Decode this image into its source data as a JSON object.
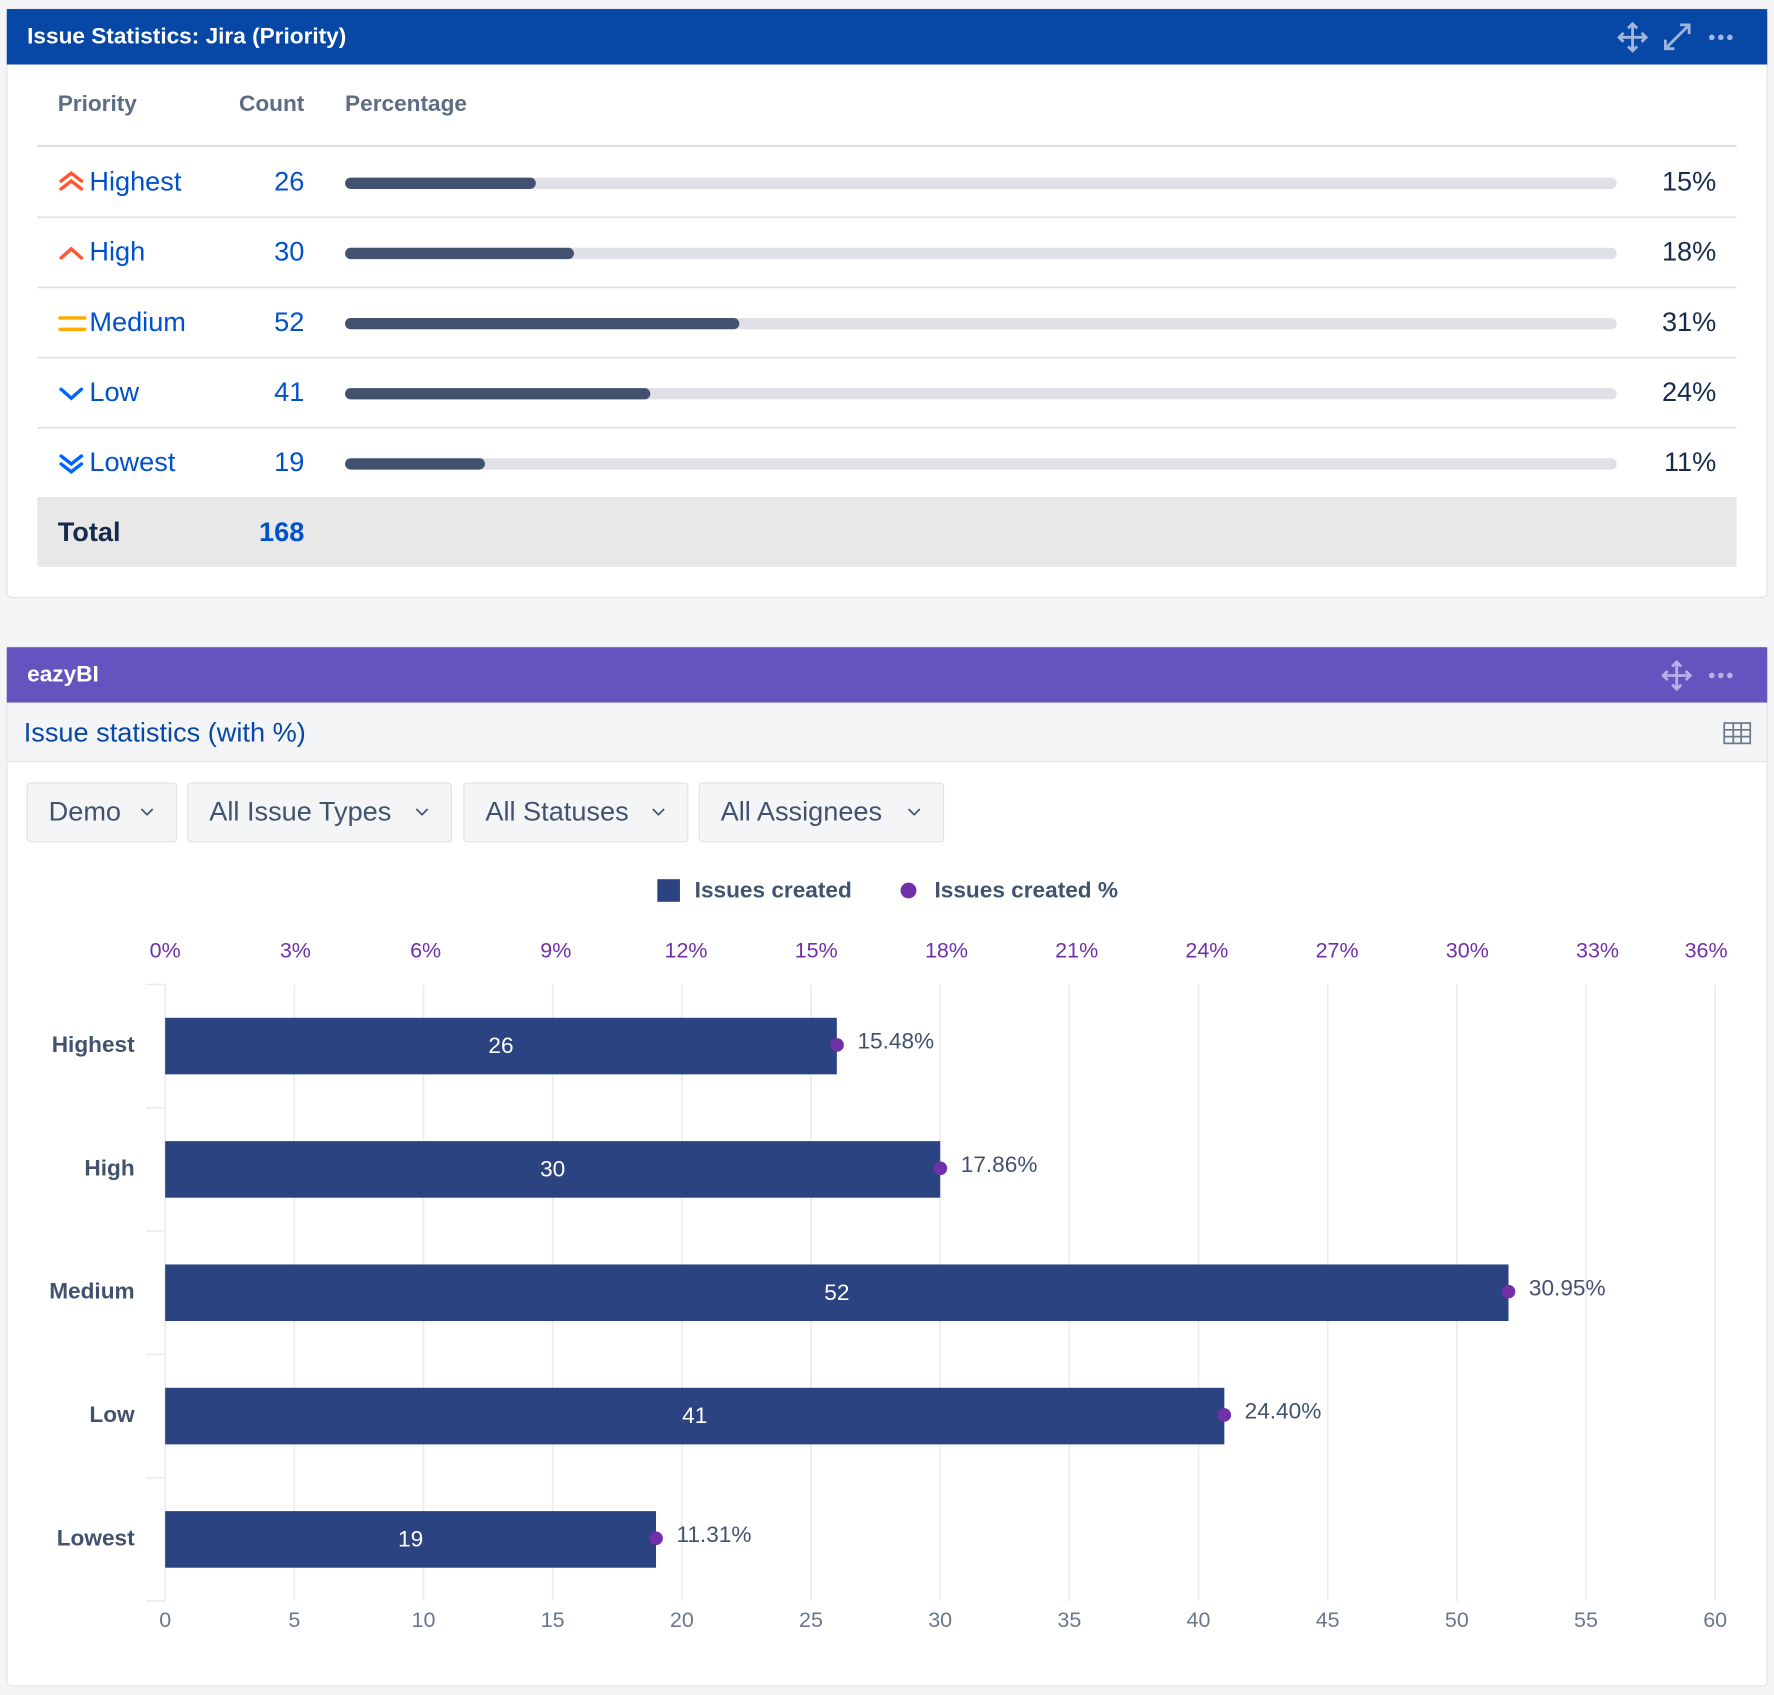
{
  "table": {
    "title": "Issue Statistics: Jira (Priority)",
    "columns": [
      "Priority",
      "Count",
      "Percentage"
    ],
    "rows": [
      {
        "priority": "Highest",
        "count": 26,
        "percentage": {
          "value": 15,
          "label": "15%"
        }
      },
      {
        "priority": "High",
        "count": 30,
        "percentage": {
          "value": 18,
          "label": "18%"
        }
      },
      {
        "priority": "Medium",
        "count": 52,
        "percentage": {
          "value": 31,
          "label": "31%"
        }
      },
      {
        "priority": "Low",
        "count": 41,
        "percentage": {
          "value": 24,
          "label": "24%"
        }
      },
      {
        "priority": "Lowest",
        "count": 19,
        "percentage": {
          "value": 11,
          "label": "11%"
        }
      }
    ],
    "total": {
      "label": "Total",
      "count": 168
    }
  },
  "report": {
    "title": "eazyBI",
    "report_title": "Issue statistics (with %)",
    "filters": [
      "Demo",
      "All Issue Types",
      "All Statuses",
      "All Assignees"
    ]
  },
  "chart_data": {
    "type": "bar",
    "orientation": "horizontal",
    "legend_position": "top",
    "grid": true,
    "categories": [
      "Highest",
      "High",
      "Medium",
      "Low",
      "Lowest"
    ],
    "series": [
      {
        "name": "Issues created",
        "color": "#2b4380",
        "values": [
          26,
          30,
          52,
          41,
          19
        ]
      },
      {
        "name": "Issues created %",
        "color": "#7030a8",
        "type": "scatter",
        "axis": "x2",
        "values": [
          15.48,
          17.86,
          30.95,
          24.4,
          11.31
        ],
        "value_labels": [
          "15.48%",
          "17.86%",
          "30.95%",
          "24.40%",
          "11.31%"
        ]
      }
    ],
    "xlim": [
      0,
      60
    ],
    "xticks": [
      0,
      5,
      10,
      15,
      20,
      25,
      30,
      35,
      40,
      45,
      50,
      55,
      60
    ],
    "x2lim": [
      0,
      35.71
    ],
    "x2ticks": [
      {
        "value": 0,
        "label": "0%"
      },
      {
        "value": 3,
        "label": "3%"
      },
      {
        "value": 6,
        "label": "6%"
      },
      {
        "value": 9,
        "label": "9%"
      },
      {
        "value": 12,
        "label": "12%"
      },
      {
        "value": 15,
        "label": "15%"
      },
      {
        "value": 18,
        "label": "18%"
      },
      {
        "value": 21,
        "label": "21%"
      },
      {
        "value": 24,
        "label": "24%"
      },
      {
        "value": 27,
        "label": "27%"
      },
      {
        "value": 30,
        "label": "30%"
      },
      {
        "value": 33,
        "label": "33%"
      },
      {
        "value": 36,
        "label": "36%"
      }
    ]
  }
}
